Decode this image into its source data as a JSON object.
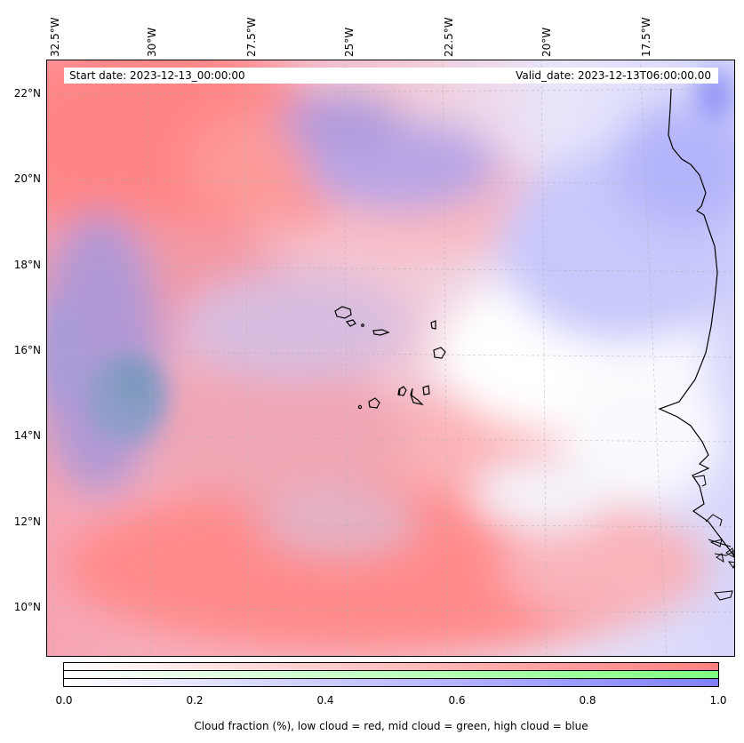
{
  "map": {
    "lon_labels": [
      "32.5°W",
      "30°W",
      "27.5°W",
      "25°W",
      "22.5°W",
      "20°W",
      "17.5°W"
    ],
    "lat_labels": [
      "22°N",
      "20°N",
      "18°N",
      "16°N",
      "14°N",
      "12°N",
      "10°N"
    ],
    "start_date": "Start date: 2023-12-13_00:00:00",
    "valid_date": "Valid_date: 2023-12-13T06:00:00.00"
  },
  "colorbar": {
    "ticks": [
      "0.0",
      "0.2",
      "0.4",
      "0.6",
      "0.8",
      "1.0"
    ],
    "label": "Cloud fraction (%), low cloud = red, mid cloud = green, high cloud = blue",
    "colors": {
      "low": "#ff8080",
      "mid": "#80ff80",
      "high": "#8080ff"
    }
  }
}
